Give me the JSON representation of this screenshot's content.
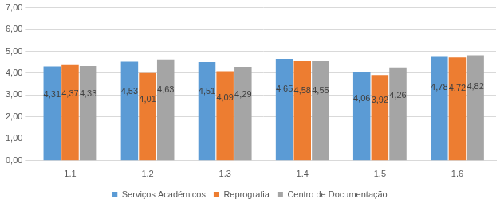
{
  "chart_data": {
    "type": "bar",
    "categories": [
      "1.1",
      "1.2",
      "1.3",
      "1.4",
      "1.5",
      "1.6"
    ],
    "series": [
      {
        "name": "Serviços Académicos",
        "color": "#5b9bd5",
        "values": [
          4.31,
          4.53,
          4.51,
          4.65,
          4.06,
          4.78
        ],
        "value_labels": [
          "4,31",
          "4,53",
          "4,51",
          "4,65",
          "4,06",
          "4,78"
        ]
      },
      {
        "name": "Reprografia",
        "color": "#ed7d31",
        "values": [
          4.37,
          4.01,
          4.09,
          4.58,
          3.92,
          4.72
        ],
        "value_labels": [
          "4,37",
          "4,01",
          "4,09",
          "4,58",
          "3,92",
          "4,72"
        ]
      },
      {
        "name": "Centro de Documentação",
        "color": "#a5a5a5",
        "values": [
          4.33,
          4.63,
          4.29,
          4.55,
          4.26,
          4.82
        ],
        "value_labels": [
          "4,33",
          "4,63",
          "4,29",
          "4,55",
          "4,26",
          "4,82"
        ]
      }
    ],
    "ylim": [
      0,
      7
    ],
    "yticks": [
      {
        "value": 0,
        "label": "0,00"
      },
      {
        "value": 1,
        "label": "1,00"
      },
      {
        "value": 2,
        "label": "2,00"
      },
      {
        "value": 3,
        "label": "3,00"
      },
      {
        "value": 4,
        "label": "4,00"
      },
      {
        "value": 5,
        "label": "5,00"
      },
      {
        "value": 6,
        "label": "6,00"
      },
      {
        "value": 7,
        "label": "7,00"
      }
    ],
    "grid": true,
    "legend": "bottom",
    "data_labels": true
  }
}
